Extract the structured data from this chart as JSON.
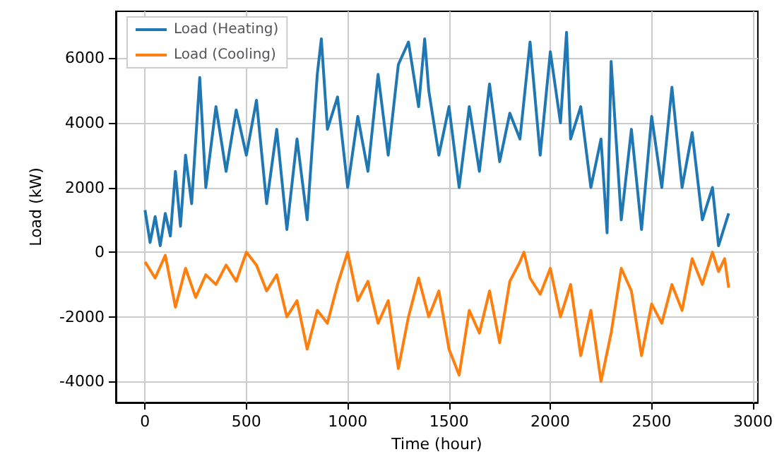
{
  "chart_data": {
    "type": "line",
    "xlabel": "Time (hour)",
    "ylabel": "Load (kW)",
    "xlim": [
      -144,
      3024
    ],
    "xticks": [
      0,
      500,
      1000,
      1500,
      2000,
      2500,
      3000
    ],
    "ylim": [
      -4650,
      7450
    ],
    "yticks": [
      -4000,
      -2000,
      0,
      2000,
      4000,
      6000
    ],
    "grid": true,
    "legend": "top left",
    "marker": "none",
    "line_style": "solid",
    "series": [
      {
        "name": "Load (Heating)",
        "color": "#1f77b4",
        "x": [
          0,
          25,
          50,
          75,
          100,
          125,
          150,
          175,
          200,
          230,
          270,
          300,
          350,
          400,
          450,
          500,
          550,
          600,
          650,
          700,
          750,
          800,
          850,
          870,
          900,
          950,
          1000,
          1050,
          1100,
          1150,
          1200,
          1250,
          1300,
          1350,
          1380,
          1400,
          1450,
          1500,
          1550,
          1600,
          1650,
          1700,
          1750,
          1800,
          1850,
          1900,
          1950,
          2000,
          2050,
          2080,
          2100,
          2150,
          2200,
          2250,
          2280,
          2300,
          2350,
          2400,
          2450,
          2500,
          2550,
          2600,
          2650,
          2700,
          2750,
          2800,
          2830,
          2860,
          2880
        ],
        "values": [
          1300,
          300,
          1100,
          200,
          1200,
          500,
          2500,
          800,
          3000,
          1500,
          5400,
          2000,
          4500,
          2500,
          4400,
          3000,
          4700,
          1500,
          3800,
          700,
          3500,
          1000,
          5500,
          6600,
          3800,
          4800,
          2000,
          4200,
          2500,
          5500,
          3000,
          5800,
          6500,
          4500,
          6600,
          5000,
          3000,
          4500,
          2000,
          4500,
          2500,
          5200,
          2800,
          4300,
          3500,
          6500,
          3000,
          6200,
          4000,
          6800,
          3500,
          4500,
          2000,
          3500,
          600,
          5900,
          1000,
          3800,
          700,
          4200,
          2000,
          5100,
          2000,
          3700,
          1000,
          2000,
          200,
          800,
          1200
        ]
      },
      {
        "name": "Load (Cooling)",
        "color": "#ff7f0e",
        "x": [
          0,
          50,
          100,
          150,
          200,
          250,
          300,
          350,
          400,
          450,
          500,
          550,
          600,
          650,
          700,
          750,
          800,
          850,
          900,
          950,
          1000,
          1050,
          1100,
          1150,
          1200,
          1250,
          1300,
          1350,
          1400,
          1450,
          1500,
          1550,
          1600,
          1650,
          1700,
          1750,
          1800,
          1850,
          1870,
          1900,
          1950,
          2000,
          2050,
          2100,
          2150,
          2200,
          2250,
          2300,
          2350,
          2400,
          2450,
          2500,
          2550,
          2600,
          2650,
          2700,
          2750,
          2800,
          2830,
          2860,
          2880
        ],
        "values": [
          -300,
          -800,
          -100,
          -1700,
          -500,
          -1400,
          -700,
          -1000,
          -400,
          -900,
          0,
          -400,
          -1200,
          -700,
          -2000,
          -1500,
          -3000,
          -1800,
          -2200,
          -1000,
          0,
          -1500,
          -900,
          -2200,
          -1500,
          -3600,
          -2000,
          -800,
          -2000,
          -1200,
          -3000,
          -3800,
          -1800,
          -2500,
          -1200,
          -2800,
          -900,
          -300,
          0,
          -800,
          -1300,
          -500,
          -2000,
          -1000,
          -3200,
          -1800,
          -4000,
          -2500,
          -500,
          -1200,
          -3200,
          -1600,
          -2200,
          -1000,
          -1800,
          -200,
          -1000,
          0,
          -600,
          -200,
          -1100
        ]
      }
    ]
  }
}
